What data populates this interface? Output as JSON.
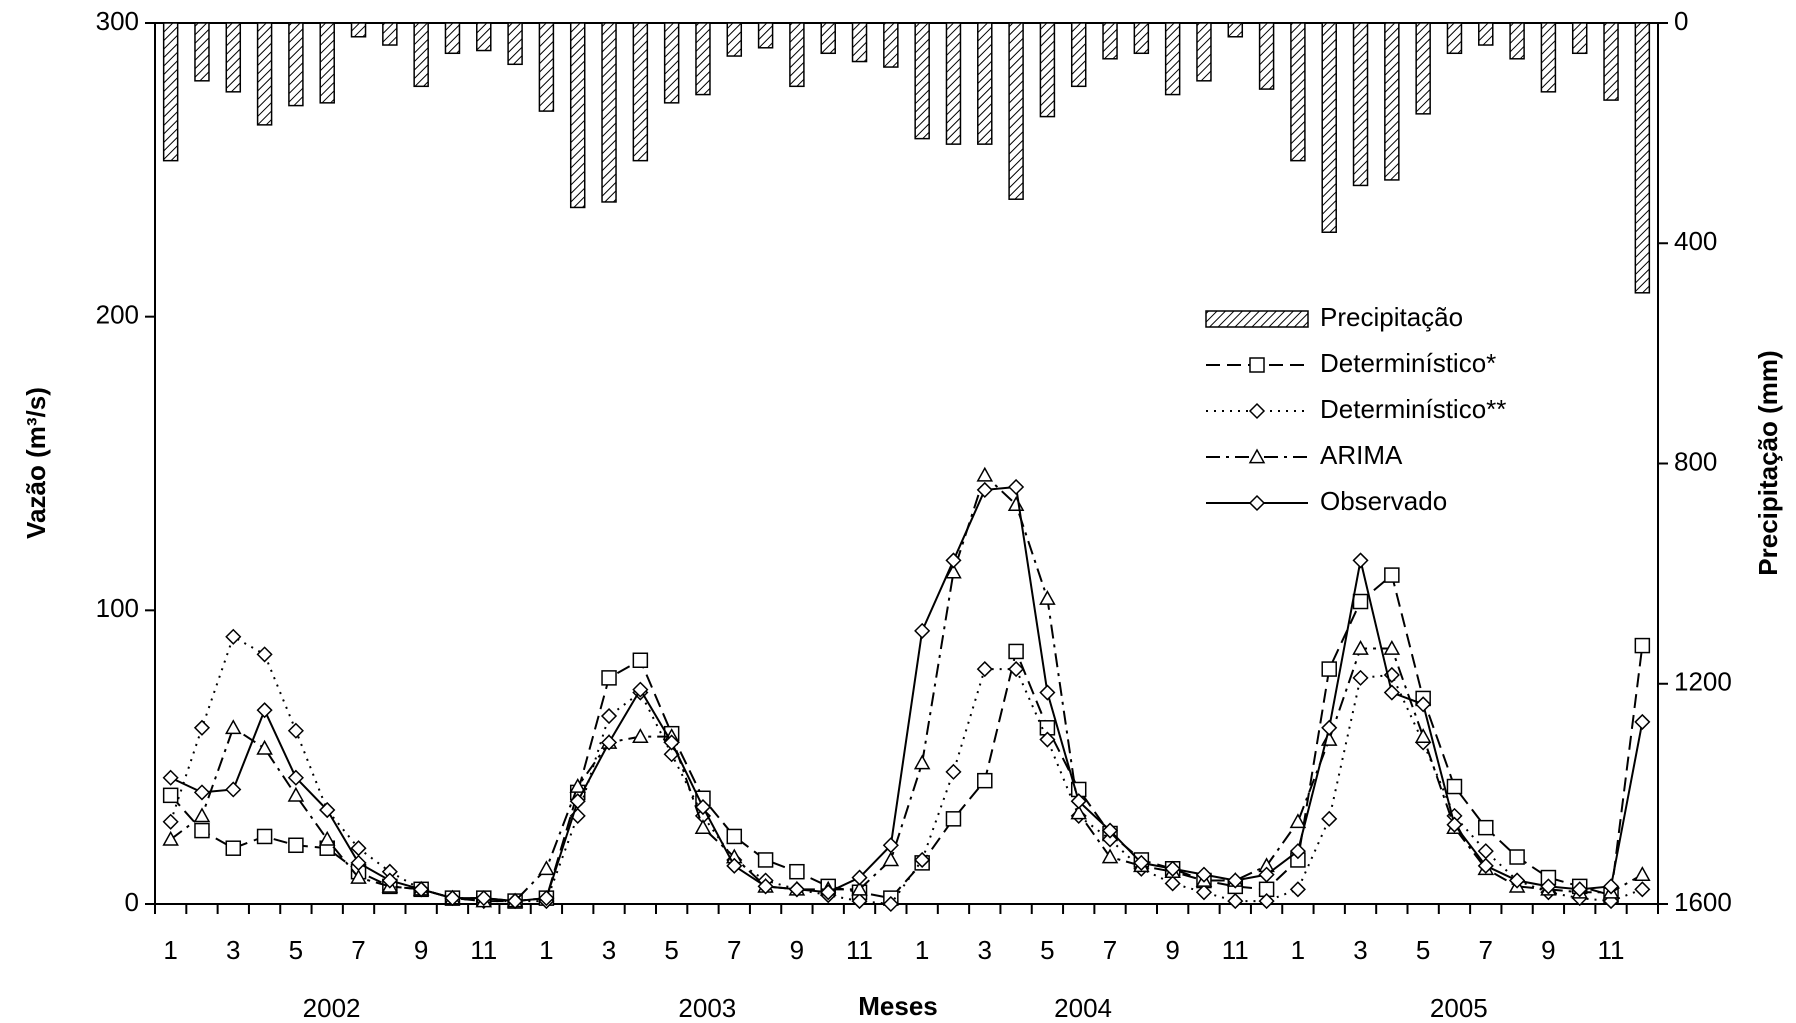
{
  "chart_data": {
    "type": "combo",
    "x_label": "Meses",
    "y_label": "Vazão (m³/s)",
    "y2_label": "Precipitação (mm)",
    "categories": [
      "1",
      null,
      "3",
      null,
      "5",
      null,
      "7",
      null,
      "9",
      null,
      "11",
      null,
      "1",
      null,
      "3",
      null,
      "5",
      null,
      "7",
      null,
      "9",
      null,
      "11",
      null,
      "1",
      null,
      "3",
      null,
      "5",
      null,
      "7",
      null,
      "9",
      null,
      "11",
      null,
      "1",
      null,
      "3",
      null,
      "5",
      null,
      "7",
      null,
      "9",
      null,
      "11",
      null
    ],
    "years": [
      "2002",
      "2003",
      "2004",
      "2005"
    ],
    "ylim": [
      0,
      300
    ],
    "yticks": [
      0,
      100,
      200,
      300
    ],
    "y2lim": [
      1600,
      0
    ],
    "y2ticks": [
      0,
      400,
      800,
      1200,
      1600
    ],
    "series": [
      {
        "name": "Precipitação",
        "type": "bar",
        "axis": "y2",
        "color": "#000",
        "values": [
          250,
          105,
          125,
          185,
          150,
          145,
          25,
          40,
          115,
          55,
          50,
          75,
          160,
          335,
          325,
          250,
          145,
          130,
          60,
          45,
          115,
          55,
          70,
          80,
          210,
          220,
          220,
          320,
          170,
          115,
          65,
          55,
          130,
          105,
          25,
          120,
          250,
          380,
          295,
          285,
          165,
          55,
          40,
          65,
          125,
          55,
          140,
          490
        ]
      },
      {
        "name": "Determinístico*",
        "type": "line",
        "color": "#000",
        "dash": "14,7",
        "marker": "square",
        "values": [
          37,
          25,
          19,
          23,
          20,
          19,
          11,
          6,
          5,
          2,
          2,
          1,
          2,
          38,
          77,
          83,
          58,
          36,
          23,
          15,
          11,
          6,
          4,
          2,
          14,
          29,
          42,
          86,
          60,
          39,
          24,
          15,
          12,
          8,
          6,
          5,
          15,
          80,
          103,
          112,
          70,
          40,
          26,
          16,
          9,
          6,
          3,
          88
        ]
      },
      {
        "name": "Determinístico**",
        "type": "line",
        "color": "#000",
        "dash": "2,6",
        "marker": "diamond",
        "values": [
          28,
          60,
          91,
          85,
          59,
          32,
          19,
          11,
          5,
          2,
          1,
          1,
          1,
          30,
          64,
          72,
          51,
          30,
          15,
          8,
          5,
          3,
          1,
          0,
          15,
          45,
          80,
          80,
          56,
          30,
          22,
          12,
          7,
          4,
          1,
          1,
          5,
          29,
          77,
          78,
          55,
          30,
          18,
          8,
          4,
          2,
          1,
          5
        ]
      },
      {
        "name": "ARIMA",
        "type": "line",
        "color": "#000",
        "dash": "14,6,3,6",
        "marker": "triangle",
        "values": [
          22,
          30,
          60,
          53,
          37,
          22,
          9,
          6,
          5,
          2,
          1,
          1,
          12,
          40,
          55,
          57,
          57,
          26,
          16,
          6,
          5,
          5,
          5,
          15,
          48,
          113,
          146,
          136,
          104,
          31,
          16,
          13,
          11,
          8,
          8,
          13,
          28,
          56,
          87,
          87,
          57,
          26,
          12,
          6,
          5,
          4,
          4,
          10
        ]
      },
      {
        "name": "Observado",
        "type": "line",
        "color": "#000",
        "dash": "none",
        "marker": "diamond",
        "values": [
          43,
          38,
          39,
          66,
          43,
          32,
          14,
          8,
          5,
          2,
          2,
          1,
          2,
          35,
          55,
          73,
          55,
          33,
          13,
          6,
          5,
          4,
          9,
          20,
          93,
          117,
          141,
          142,
          72,
          35,
          25,
          14,
          12,
          10,
          8,
          10,
          18,
          60,
          117,
          72,
          68,
          27,
          13,
          8,
          6,
          5,
          6,
          62
        ]
      }
    ]
  }
}
